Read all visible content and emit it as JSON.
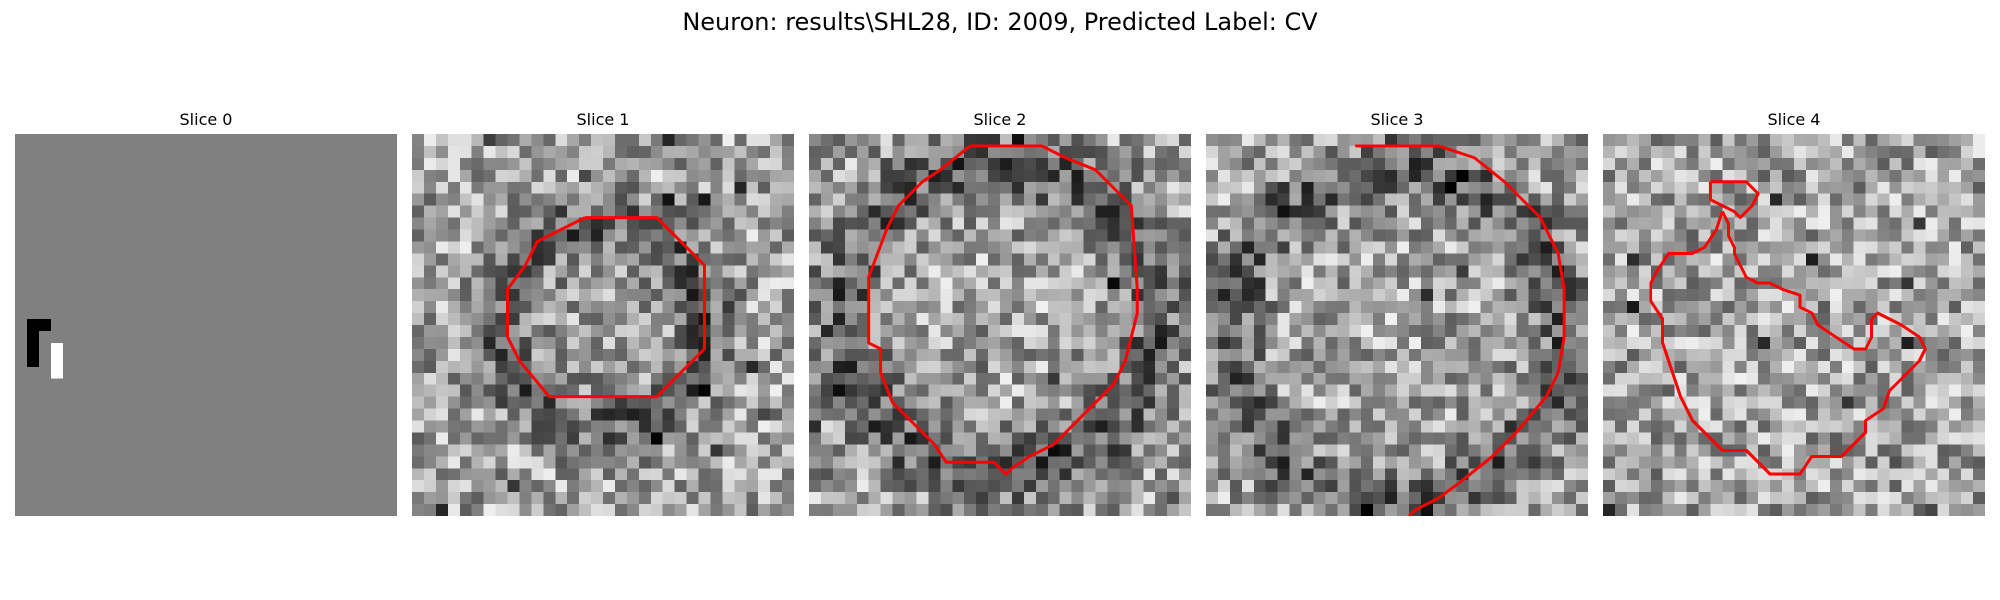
{
  "figure": {
    "title": "Neuron: results\\SHL28, ID: 2009, Predicted Label: CV"
  },
  "colors": {
    "contour": "#ff0000",
    "background": "#ffffff",
    "flat_slice": "#808080"
  },
  "slices": [
    {
      "title": "Slice 0",
      "kind": "flat",
      "seed": 11,
      "contour_points": []
    },
    {
      "title": "Slice 1",
      "kind": "noise",
      "seed": 101,
      "dark_ring": {
        "cx": 16,
        "cy": 16,
        "r": 8.5,
        "w": 2.5
      },
      "contour_points": [
        [
          14.5,
          7
        ],
        [
          20.5,
          7
        ],
        [
          24.5,
          11
        ],
        [
          24.5,
          18
        ],
        [
          20.5,
          22
        ],
        [
          11.5,
          22
        ],
        [
          9,
          19
        ],
        [
          8,
          17
        ],
        [
          8,
          13
        ],
        [
          9.5,
          11
        ],
        [
          10.5,
          9
        ],
        [
          12.5,
          8
        ]
      ]
    },
    {
      "title": "Slice 2",
      "kind": "noise",
      "seed": 202,
      "dark_ring": {
        "cx": 16,
        "cy": 15.5,
        "r": 13,
        "w": 3
      },
      "contour_points": [
        [
          13.5,
          1
        ],
        [
          19.5,
          1
        ],
        [
          21.5,
          2
        ],
        [
          24,
          3
        ],
        [
          27,
          6
        ],
        [
          27.5,
          13
        ],
        [
          27.5,
          15
        ],
        [
          26.5,
          19
        ],
        [
          25.5,
          21
        ],
        [
          24,
          22.5
        ],
        [
          20.5,
          26
        ],
        [
          18.5,
          27
        ],
        [
          17,
          28
        ],
        [
          16.5,
          28.5
        ],
        [
          15.5,
          27.5
        ],
        [
          11.5,
          27.5
        ],
        [
          10.5,
          26
        ],
        [
          8.5,
          24
        ],
        [
          7,
          22.5
        ],
        [
          6,
          20
        ],
        [
          6,
          18
        ],
        [
          5,
          17.5
        ],
        [
          5,
          12
        ],
        [
          6.5,
          8
        ],
        [
          7.5,
          6
        ],
        [
          9.5,
          4
        ],
        [
          11,
          3
        ]
      ]
    },
    {
      "title": "Slice 3",
      "kind": "noise",
      "seed": 303,
      "dark_ring": {
        "cx": 16,
        "cy": 17,
        "r": 14,
        "w": 2.5
      },
      "contour_points": [
        [
          12.5,
          1
        ],
        [
          19.5,
          1
        ],
        [
          22.5,
          2
        ],
        [
          25,
          4
        ],
        [
          27,
          6
        ],
        [
          28,
          7
        ],
        [
          29.5,
          10
        ],
        [
          30,
          13
        ],
        [
          30,
          17
        ],
        [
          29.5,
          20
        ],
        [
          28.5,
          22
        ],
        [
          26,
          25
        ],
        [
          24,
          27
        ],
        [
          21.5,
          29
        ],
        [
          19.5,
          30.5
        ],
        [
          17.5,
          31.5
        ],
        [
          17,
          32
        ]
      ]
    },
    {
      "title": "Slice 4",
      "kind": "noise",
      "seed": 404,
      "dark_ring": null,
      "contour_points": [
        [
          9,
          4
        ],
        [
          12,
          4
        ],
        [
          13,
          5
        ],
        [
          12.5,
          6
        ],
        [
          11.5,
          7
        ],
        [
          11,
          6.5
        ],
        [
          10,
          6
        ],
        [
          9,
          5.5
        ],
        [
          9,
          4.5
        ]
      ]
    }
  ]
}
